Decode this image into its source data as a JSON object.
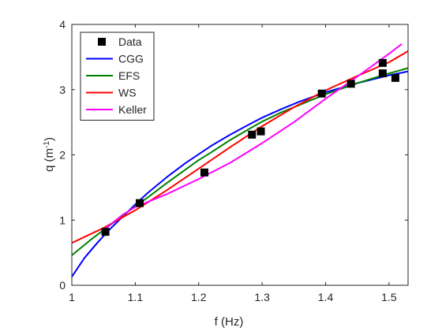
{
  "chart_data": {
    "type": "line",
    "xlabel": "f (Hz)",
    "ylabel": "q (m^-1)",
    "xlim": [
      1.0,
      1.53
    ],
    "ylim": [
      0,
      4
    ],
    "xticks": [
      1,
      1.1,
      1.2,
      1.3,
      1.4,
      1.5
    ],
    "yticks": [
      0,
      1,
      2,
      3,
      4
    ],
    "xtick_labels": [
      "1",
      "1.1",
      "1.2",
      "1.3",
      "1.4",
      "1.5"
    ],
    "ytick_labels": [
      "0",
      "1",
      "2",
      "3",
      "4"
    ],
    "grid": false,
    "legend_position": "top-left",
    "series": [
      {
        "name": "Data",
        "kind": "scatter",
        "marker": "square",
        "color": "#000000",
        "x": [
          1.053,
          1.107,
          1.209,
          1.284,
          1.298,
          1.394,
          1.44,
          1.49,
          1.49,
          1.51
        ],
        "y": [
          0.82,
          1.26,
          1.73,
          2.31,
          2.36,
          2.94,
          3.09,
          3.41,
          3.25,
          3.18
        ]
      },
      {
        "name": "CGG",
        "kind": "line",
        "color": "#0000ff",
        "x": [
          1.0,
          1.02,
          1.04,
          1.06,
          1.08,
          1.1,
          1.12,
          1.15,
          1.18,
          1.2,
          1.22,
          1.25,
          1.28,
          1.3,
          1.33,
          1.36,
          1.4,
          1.45,
          1.5,
          1.53
        ],
        "y": [
          0.13,
          0.42,
          0.65,
          0.86,
          1.05,
          1.24,
          1.42,
          1.66,
          1.88,
          2.01,
          2.14,
          2.31,
          2.47,
          2.57,
          2.7,
          2.82,
          2.96,
          3.1,
          3.22,
          3.28
        ]
      },
      {
        "name": "EFS",
        "kind": "line",
        "color": "#008000",
        "x": [
          1.0,
          1.03,
          1.06,
          1.09,
          1.12,
          1.15,
          1.18,
          1.2,
          1.22,
          1.25,
          1.28,
          1.3,
          1.33,
          1.36,
          1.4,
          1.45,
          1.5,
          1.53
        ],
        "y": [
          0.46,
          0.7,
          0.92,
          1.14,
          1.35,
          1.57,
          1.78,
          1.92,
          2.04,
          2.23,
          2.4,
          2.51,
          2.65,
          2.77,
          2.93,
          3.1,
          3.25,
          3.33
        ]
      },
      {
        "name": "WS",
        "kind": "line",
        "color": "#ff0000",
        "x": [
          1.0,
          1.05,
          1.1,
          1.15,
          1.2,
          1.25,
          1.3,
          1.35,
          1.4,
          1.45,
          1.5,
          1.53
        ],
        "y": [
          0.65,
          0.88,
          1.15,
          1.46,
          1.79,
          2.12,
          2.44,
          2.73,
          2.99,
          3.21,
          3.42,
          3.59
        ]
      },
      {
        "name": "Keller",
        "kind": "line",
        "color": "#ff00ff",
        "x": [
          1.05,
          1.08,
          1.1,
          1.15,
          1.2,
          1.25,
          1.3,
          1.35,
          1.4,
          1.45,
          1.5,
          1.52
        ],
        "y": [
          0.85,
          1.08,
          1.2,
          1.4,
          1.63,
          1.88,
          2.18,
          2.5,
          2.86,
          3.2,
          3.55,
          3.7
        ]
      }
    ]
  }
}
